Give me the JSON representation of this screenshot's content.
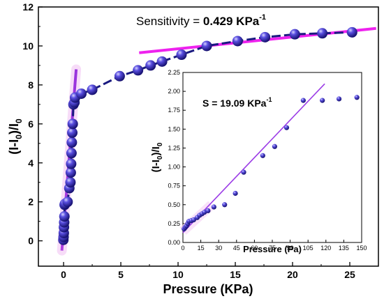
{
  "chart_data": [
    {
      "type": "scatter",
      "xlabel": "Pressure (KPa)",
      "ylabel_main": "(I-I",
      "ylabel_sub": "0",
      "ylabel_tail": ")/I",
      "ylabel_sub2": "0",
      "xlim": [
        -2.2,
        27.5
      ],
      "ylim": [
        -1.3,
        12
      ],
      "xticks": [
        0,
        5,
        10,
        15,
        20,
        25
      ],
      "yticks": [
        0,
        2,
        4,
        6,
        8,
        10,
        12
      ],
      "annotation_prefix": "Sensitivity = ",
      "annotation_value": "0.429 KPa",
      "annotation_sup": "-1",
      "marker_color": "#2a1fa8",
      "line_color": "#1a1a80",
      "fit_color_low": "#b040e0",
      "fit_color_high": "#ee22ee",
      "points": [
        {
          "x": -0.02,
          "y": 0.05
        },
        {
          "x": 0.0,
          "y": 0.2
        },
        {
          "x": 0.02,
          "y": 0.4
        },
        {
          "x": 0.03,
          "y": 0.7
        },
        {
          "x": 0.05,
          "y": 0.95
        },
        {
          "x": 0.07,
          "y": 1.25
        },
        {
          "x": 0.09,
          "y": 1.85
        },
        {
          "x": 0.12,
          "y": 1.9
        },
        {
          "x": 0.35,
          "y": 2.0
        },
        {
          "x": 0.5,
          "y": 2.7
        },
        {
          "x": 0.6,
          "y": 3.0
        },
        {
          "x": 0.63,
          "y": 3.5
        },
        {
          "x": 0.66,
          "y": 3.95
        },
        {
          "x": 0.69,
          "y": 4.5
        },
        {
          "x": 0.72,
          "y": 5.05
        },
        {
          "x": 0.76,
          "y": 5.55
        },
        {
          "x": 0.8,
          "y": 6.0
        },
        {
          "x": 0.86,
          "y": 7.0
        },
        {
          "x": 0.95,
          "y": 7.1
        },
        {
          "x": 1.0,
          "y": 7.35
        },
        {
          "x": 1.55,
          "y": 7.55
        },
        {
          "x": 2.5,
          "y": 7.75
        },
        {
          "x": 4.9,
          "y": 8.45
        },
        {
          "x": 6.5,
          "y": 8.75
        },
        {
          "x": 7.6,
          "y": 9.0
        },
        {
          "x": 8.6,
          "y": 9.2
        },
        {
          "x": 10.3,
          "y": 9.55
        },
        {
          "x": 12.5,
          "y": 10.0
        },
        {
          "x": 15.2,
          "y": 10.25
        },
        {
          "x": 17.6,
          "y": 10.45
        },
        {
          "x": 20.2,
          "y": 10.6
        },
        {
          "x": 22.6,
          "y": 10.65
        },
        {
          "x": 25.2,
          "y": 10.7
        }
      ],
      "fits": [
        {
          "x": [
            -0.15,
            1.1
          ],
          "y": [
            -0.5,
            8.8
          ]
        },
        {
          "x": [
            6.6,
            27.3
          ],
          "y": [
            9.65,
            10.9
          ]
        }
      ]
    },
    {
      "type": "scatter",
      "xlabel": "Pressure (Pa)",
      "ylabel_main": "(I-I",
      "ylabel_sub": "0",
      "ylabel_tail": ")/I",
      "ylabel_sub2": "0",
      "xlim": [
        0,
        150
      ],
      "ylim": [
        0,
        2.25
      ],
      "xticks": [
        0,
        15,
        30,
        45,
        60,
        75,
        90,
        105,
        120,
        135,
        150
      ],
      "yticks": [
        "0.00",
        "0.25",
        "0.50",
        "0.75",
        "1.00",
        "1.25",
        "1.50",
        "1.75",
        "2.00",
        "2.25"
      ],
      "annotation_prefix": "S = 19.09 KPa",
      "annotation_sup": "-1",
      "marker_color": "#2a1fa8",
      "fit_color": "#9b3be6",
      "points": [
        {
          "x": 1,
          "y": 0.18
        },
        {
          "x": 2,
          "y": 0.2
        },
        {
          "x": 3,
          "y": 0.22
        },
        {
          "x": 4,
          "y": 0.25
        },
        {
          "x": 5,
          "y": 0.28
        },
        {
          "x": 7,
          "y": 0.29
        },
        {
          "x": 9,
          "y": 0.3
        },
        {
          "x": 12,
          "y": 0.33
        },
        {
          "x": 14,
          "y": 0.36
        },
        {
          "x": 16,
          "y": 0.38
        },
        {
          "x": 18,
          "y": 0.4
        },
        {
          "x": 21,
          "y": 0.42
        },
        {
          "x": 26,
          "y": 0.47
        },
        {
          "x": 35,
          "y": 0.5
        },
        {
          "x": 44,
          "y": 0.65
        },
        {
          "x": 51,
          "y": 0.93
        },
        {
          "x": 67,
          "y": 1.15
        },
        {
          "x": 77,
          "y": 1.27
        },
        {
          "x": 87,
          "y": 1.52
        },
        {
          "x": 101,
          "y": 1.88
        },
        {
          "x": 117,
          "y": 1.88
        },
        {
          "x": 131,
          "y": 1.9
        },
        {
          "x": 146,
          "y": 1.92
        }
      ],
      "fit": {
        "x": [
          0,
          119
        ],
        "y": [
          0.13,
          2.1
        ]
      }
    }
  ]
}
